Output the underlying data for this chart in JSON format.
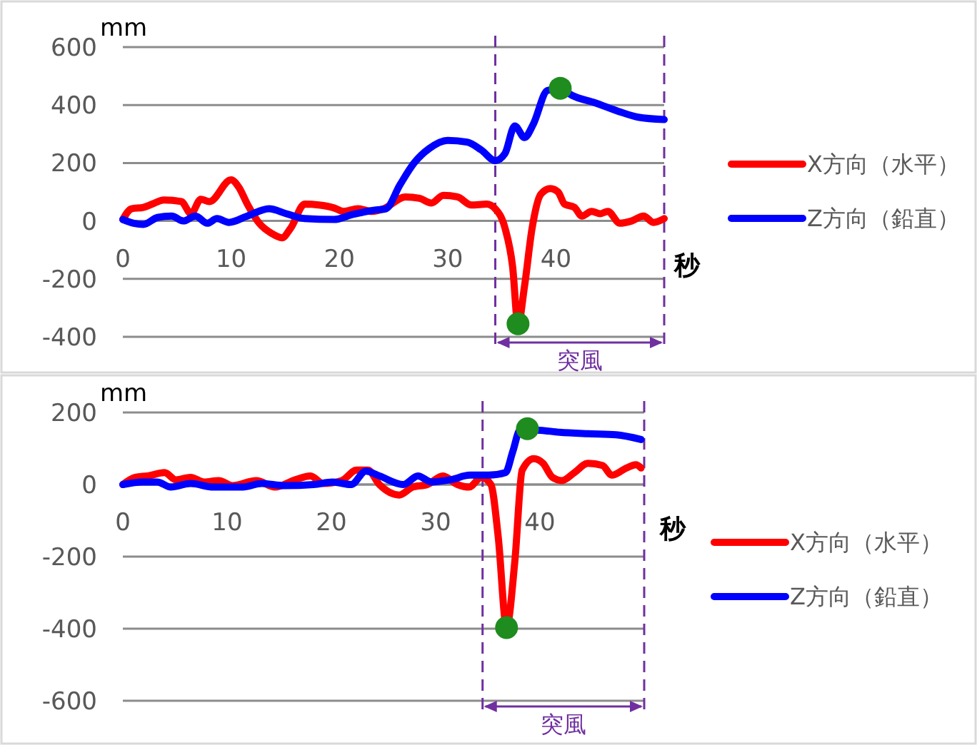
{
  "chart_data": [
    {
      "type": "line",
      "xlabel": "秒",
      "ylabel": "mm",
      "xlim": [
        0,
        50
      ],
      "xticks": [
        0,
        10,
        20,
        30,
        40
      ],
      "ylim": [
        -400,
        600
      ],
      "yticks": [
        -400,
        -200,
        0,
        200,
        400,
        600
      ],
      "grid": "y",
      "legend": "right",
      "marker": "none",
      "line_style": "solid",
      "ref_lines": [
        {
          "axis": "x",
          "value": 34.4,
          "color": "#7030a0",
          "line_style": "dashed"
        },
        {
          "axis": "x",
          "value": 50,
          "color": "#7030a0",
          "line_style": "dashed"
        }
      ],
      "annotations": [
        "突風"
      ],
      "series": [
        {
          "name": "X方向（水平）",
          "color": "#ff0000",
          "x": [
            0,
            0.8,
            1.9,
            2.7,
            3.8,
            5.4,
            6.3,
            7.2,
            8,
            10,
            10.7,
            11.5,
            12.6,
            13.7,
            14.7,
            15.5,
            16.8,
            18.1,
            19.5,
            20.4,
            21.7,
            23,
            24.1,
            26.1,
            27.4,
            28.5,
            29.6,
            30.9,
            32.2,
            33.6,
            34.4,
            35.3,
            36,
            36.5,
            37.1,
            37.8,
            38.6,
            39.5,
            40.2,
            40.8,
            41.7,
            42.4,
            43.3,
            44.1,
            44.8,
            45.9,
            47,
            48.1,
            49,
            50
          ],
          "values": [
            5,
            42,
            47,
            58,
            72,
            67,
            25,
            75,
            67,
            142,
            117,
            58,
            -8,
            -42,
            -58,
            -25,
            58,
            55,
            45,
            33,
            42,
            33,
            42,
            83,
            78,
            62,
            88,
            83,
            55,
            58,
            42,
            -25,
            -158,
            -358,
            -225,
            -25,
            92,
            112,
            100,
            58,
            47,
            17,
            33,
            25,
            33,
            -8,
            0,
            17,
            -5,
            8
          ]
        },
        {
          "name": "Z方向（鉛直）",
          "color": "#0000ff",
          "x": [
            0,
            1,
            1.9,
            3.2,
            4.5,
            5.6,
            6.7,
            7.8,
            8.7,
            9.8,
            11.5,
            13.5,
            15.1,
            16.8,
            19.5,
            21.2,
            23.4,
            24.3,
            25.6,
            26.9,
            28.3,
            30,
            31.8,
            33.1,
            34.4,
            35.3,
            36.2,
            37.1,
            37.9,
            39.2,
            40.4,
            41.5,
            43.6,
            45.8,
            47.6,
            50
          ],
          "values": [
            5,
            -8,
            -12,
            12,
            17,
            0,
            17,
            -8,
            8,
            -5,
            17,
            42,
            25,
            8,
            5,
            22,
            38,
            42,
            125,
            200,
            250,
            278,
            272,
            245,
            208,
            233,
            328,
            288,
            333,
            450,
            458,
            433,
            408,
            378,
            358,
            350
          ]
        },
        {
          "type": "scatter",
          "color": "#1e8c1e",
          "marker": "circle",
          "x": [
            36.5,
            40.4
          ],
          "values": [
            -355,
            458
          ]
        }
      ]
    },
    {
      "type": "line",
      "xlabel": "秒",
      "ylabel": "mm",
      "xlim": [
        0,
        50
      ],
      "xticks": [
        0,
        10,
        20,
        30,
        40
      ],
      "ylim": [
        -600,
        200
      ],
      "yticks": [
        -600,
        -400,
        -200,
        0,
        200
      ],
      "grid": "y",
      "legend": "right",
      "marker": "none",
      "line_style": "solid",
      "ref_lines": [
        {
          "axis": "x",
          "value": 34.5,
          "color": "#7030a0",
          "line_style": "dashed"
        },
        {
          "axis": "x",
          "value": 50,
          "color": "#7030a0",
          "line_style": "dashed"
        }
      ],
      "annotations": [
        "突風"
      ],
      "series": [
        {
          "name": "X方向（水平）",
          "color": "#ff0000",
          "x": [
            0,
            1.2,
            2.4,
            4,
            5.1,
            6.5,
            7.8,
            9.2,
            10.5,
            12.8,
            14.6,
            16.5,
            18,
            19.2,
            21,
            22.4,
            23.5,
            24.6,
            26.5,
            27.8,
            29.2,
            30.7,
            32.1,
            33.2,
            34.4,
            35.3,
            36,
            36.8,
            37.6,
            38.3,
            39.4,
            40.3,
            41.2,
            42.1,
            43.3,
            44.6,
            46,
            46.9,
            48.3,
            49.2,
            49.7
          ],
          "values": [
            0,
            20,
            24,
            33,
            13,
            20,
            7,
            11,
            -3,
            11,
            -7,
            13,
            24,
            3,
            11,
            40,
            40,
            0,
            -29,
            -7,
            0,
            24,
            0,
            -7,
            20,
            0,
            -145,
            -395,
            -211,
            40,
            72,
            59,
            20,
            11,
            33,
            59,
            53,
            26,
            46,
            55,
            46
          ]
        },
        {
          "name": "Z方向（鉛直）",
          "color": "#0000ff",
          "x": [
            0,
            1.9,
            3.3,
            4.6,
            6.5,
            8.7,
            11.5,
            13.3,
            15.5,
            18.3,
            20.1,
            21.9,
            23.3,
            24.6,
            26.9,
            28.3,
            29.6,
            31.4,
            33.3,
            35.1,
            36.7,
            37.4,
            38.1,
            39.6,
            41.9,
            44.6,
            47.3,
            49.7
          ],
          "values": [
            0,
            7,
            7,
            -7,
            3,
            -7,
            -7,
            3,
            -3,
            0,
            7,
            0,
            37,
            24,
            0,
            24,
            7,
            13,
            26,
            26,
            33,
            92,
            151,
            151,
            145,
            141,
            138,
            125
          ]
        },
        {
          "type": "scatter",
          "color": "#1e8c1e",
          "marker": "circle",
          "x": [
            36.8,
            38.8
          ],
          "values": [
            -397,
            155
          ]
        }
      ]
    }
  ]
}
